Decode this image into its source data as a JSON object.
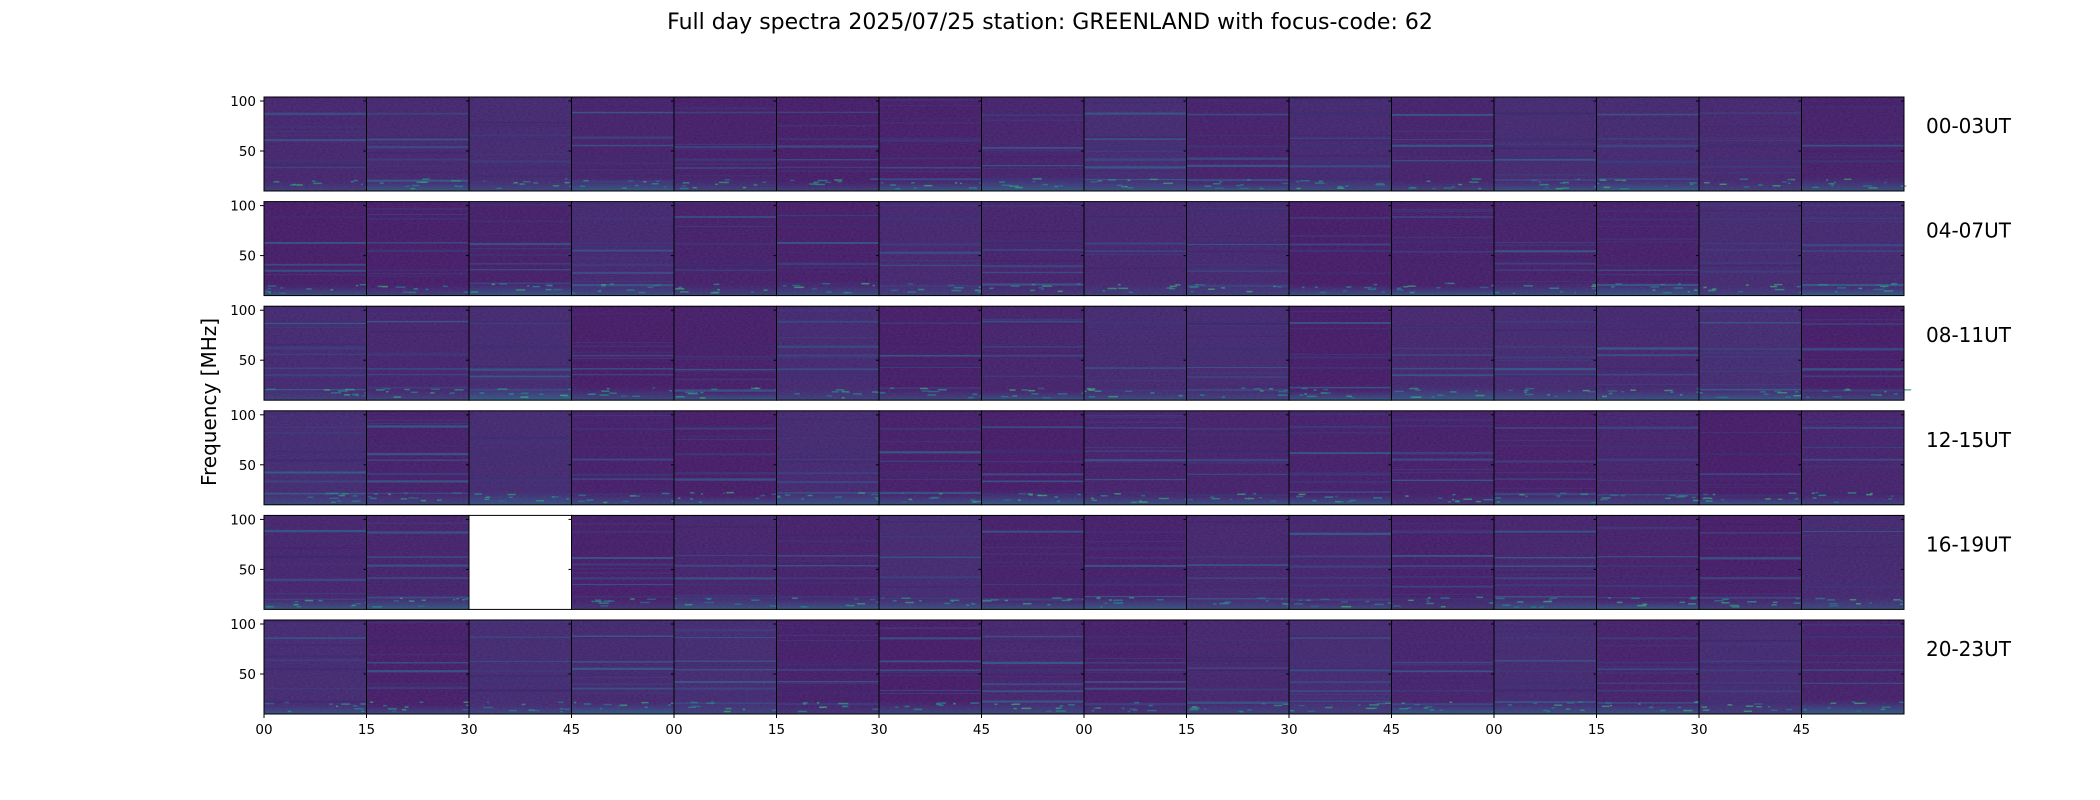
{
  "chart_data": {
    "type": "heatmap",
    "title": "Full day spectra 2025/07/25 station: GREENLAND with focus-code: 62",
    "ylabel": "Frequency [MHz]",
    "xlabel": "",
    "ylim": [
      10,
      104
    ],
    "y_ticks": [
      100,
      50
    ],
    "x_tick_labels": [
      "00",
      "15",
      "30",
      "45",
      "00",
      "15",
      "30",
      "45",
      "00",
      "15",
      "30",
      "45",
      "00",
      "15",
      "30",
      "45"
    ],
    "rows": [
      "00-03UT",
      "04-07UT",
      "08-11UT",
      "12-15UT",
      "16-19UT",
      "20-23UT"
    ],
    "panels_per_row": 16,
    "panel_minutes": 15,
    "colormap": "viridis",
    "missing_panels": [
      {
        "row": 4,
        "col": 2
      }
    ],
    "background_intensity": 0.06,
    "low_freq_band_intensity": 0.35,
    "rfi_lines_mhz": [
      88,
      63,
      55,
      42,
      35,
      22
    ]
  },
  "colors": {
    "viridis_low": "#440154",
    "viridis_mid": "#21918c",
    "viridis_high": "#5ec962",
    "frame": "#000000",
    "missing": "#ffffff"
  }
}
